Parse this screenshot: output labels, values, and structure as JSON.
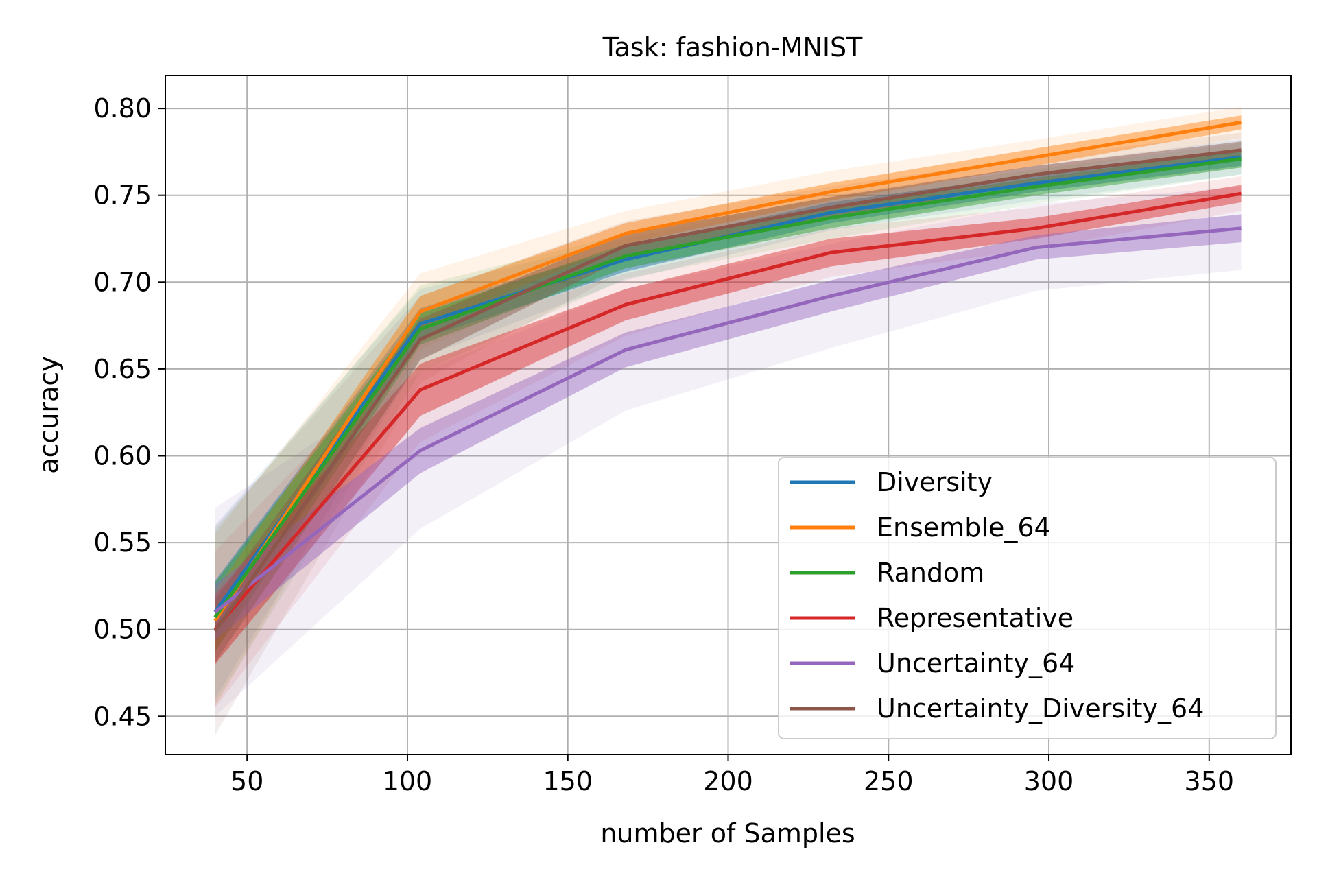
{
  "chart_data": {
    "type": "line",
    "title": "Task: fashion-MNIST",
    "xlabel": "number of Samples",
    "ylabel": "accuracy",
    "xlim": [
      24.5,
      375.5
    ],
    "ylim": [
      0.428,
      0.819
    ],
    "xticks": [
      50,
      100,
      150,
      200,
      250,
      300,
      350
    ],
    "yticks": [
      0.45,
      0.5,
      0.55,
      0.6,
      0.65,
      0.7,
      0.75,
      0.8
    ],
    "xtick_labels": [
      "50",
      "100",
      "150",
      "200",
      "250",
      "300",
      "350"
    ],
    "ytick_labels": [
      "0.45",
      "0.50",
      "0.55",
      "0.60",
      "0.65",
      "0.70",
      "0.75",
      "0.80"
    ],
    "grid": true,
    "legend_position": "lower-right",
    "x": [
      40,
      104,
      168,
      232,
      296,
      360
    ],
    "series": [
      {
        "name": "Diversity",
        "color": "#1f77b4",
        "values": [
          0.51,
          0.676,
          0.713,
          0.74,
          0.757,
          0.772
        ],
        "std": [
          0.018,
          0.009,
          0.007,
          0.006,
          0.005,
          0.005
        ],
        "outer": [
          0.05,
          0.02,
          0.012,
          0.01,
          0.01,
          0.01
        ]
      },
      {
        "name": "Ensemble_64",
        "color": "#ff7f0e",
        "values": [
          0.505,
          0.683,
          0.728,
          0.752,
          0.772,
          0.792
        ],
        "std": [
          0.017,
          0.009,
          0.006,
          0.005,
          0.005,
          0.004
        ],
        "outer": [
          0.05,
          0.022,
          0.013,
          0.012,
          0.01,
          0.009
        ]
      },
      {
        "name": "Random",
        "color": "#2ca02c",
        "values": [
          0.507,
          0.673,
          0.715,
          0.737,
          0.755,
          0.771
        ],
        "std": [
          0.02,
          0.009,
          0.007,
          0.006,
          0.005,
          0.005
        ],
        "outer": [
          0.05,
          0.025,
          0.013,
          0.012,
          0.01,
          0.009
        ]
      },
      {
        "name": "Representative",
        "color": "#d62728",
        "values": [
          0.5,
          0.638,
          0.687,
          0.717,
          0.731,
          0.751
        ],
        "std": [
          0.02,
          0.015,
          0.009,
          0.008,
          0.006,
          0.005
        ],
        "outer": [
          0.045,
          0.03,
          0.018,
          0.014,
          0.012,
          0.01
        ]
      },
      {
        "name": "Uncertainty_64",
        "color": "#9467bd",
        "values": [
          0.51,
          0.603,
          0.661,
          0.692,
          0.72,
          0.731
        ],
        "std": [
          0.016,
          0.013,
          0.01,
          0.009,
          0.007,
          0.008
        ],
        "outer": [
          0.06,
          0.045,
          0.035,
          0.03,
          0.025,
          0.024
        ]
      },
      {
        "name": "Uncertainty_Diversity_64",
        "color": "#8c564b",
        "values": [
          0.499,
          0.667,
          0.721,
          0.743,
          0.762,
          0.776
        ],
        "std": [
          0.018,
          0.012,
          0.007,
          0.006,
          0.005,
          0.005
        ],
        "outer": [
          0.06,
          0.025,
          0.014,
          0.012,
          0.01,
          0.01
        ]
      }
    ]
  }
}
